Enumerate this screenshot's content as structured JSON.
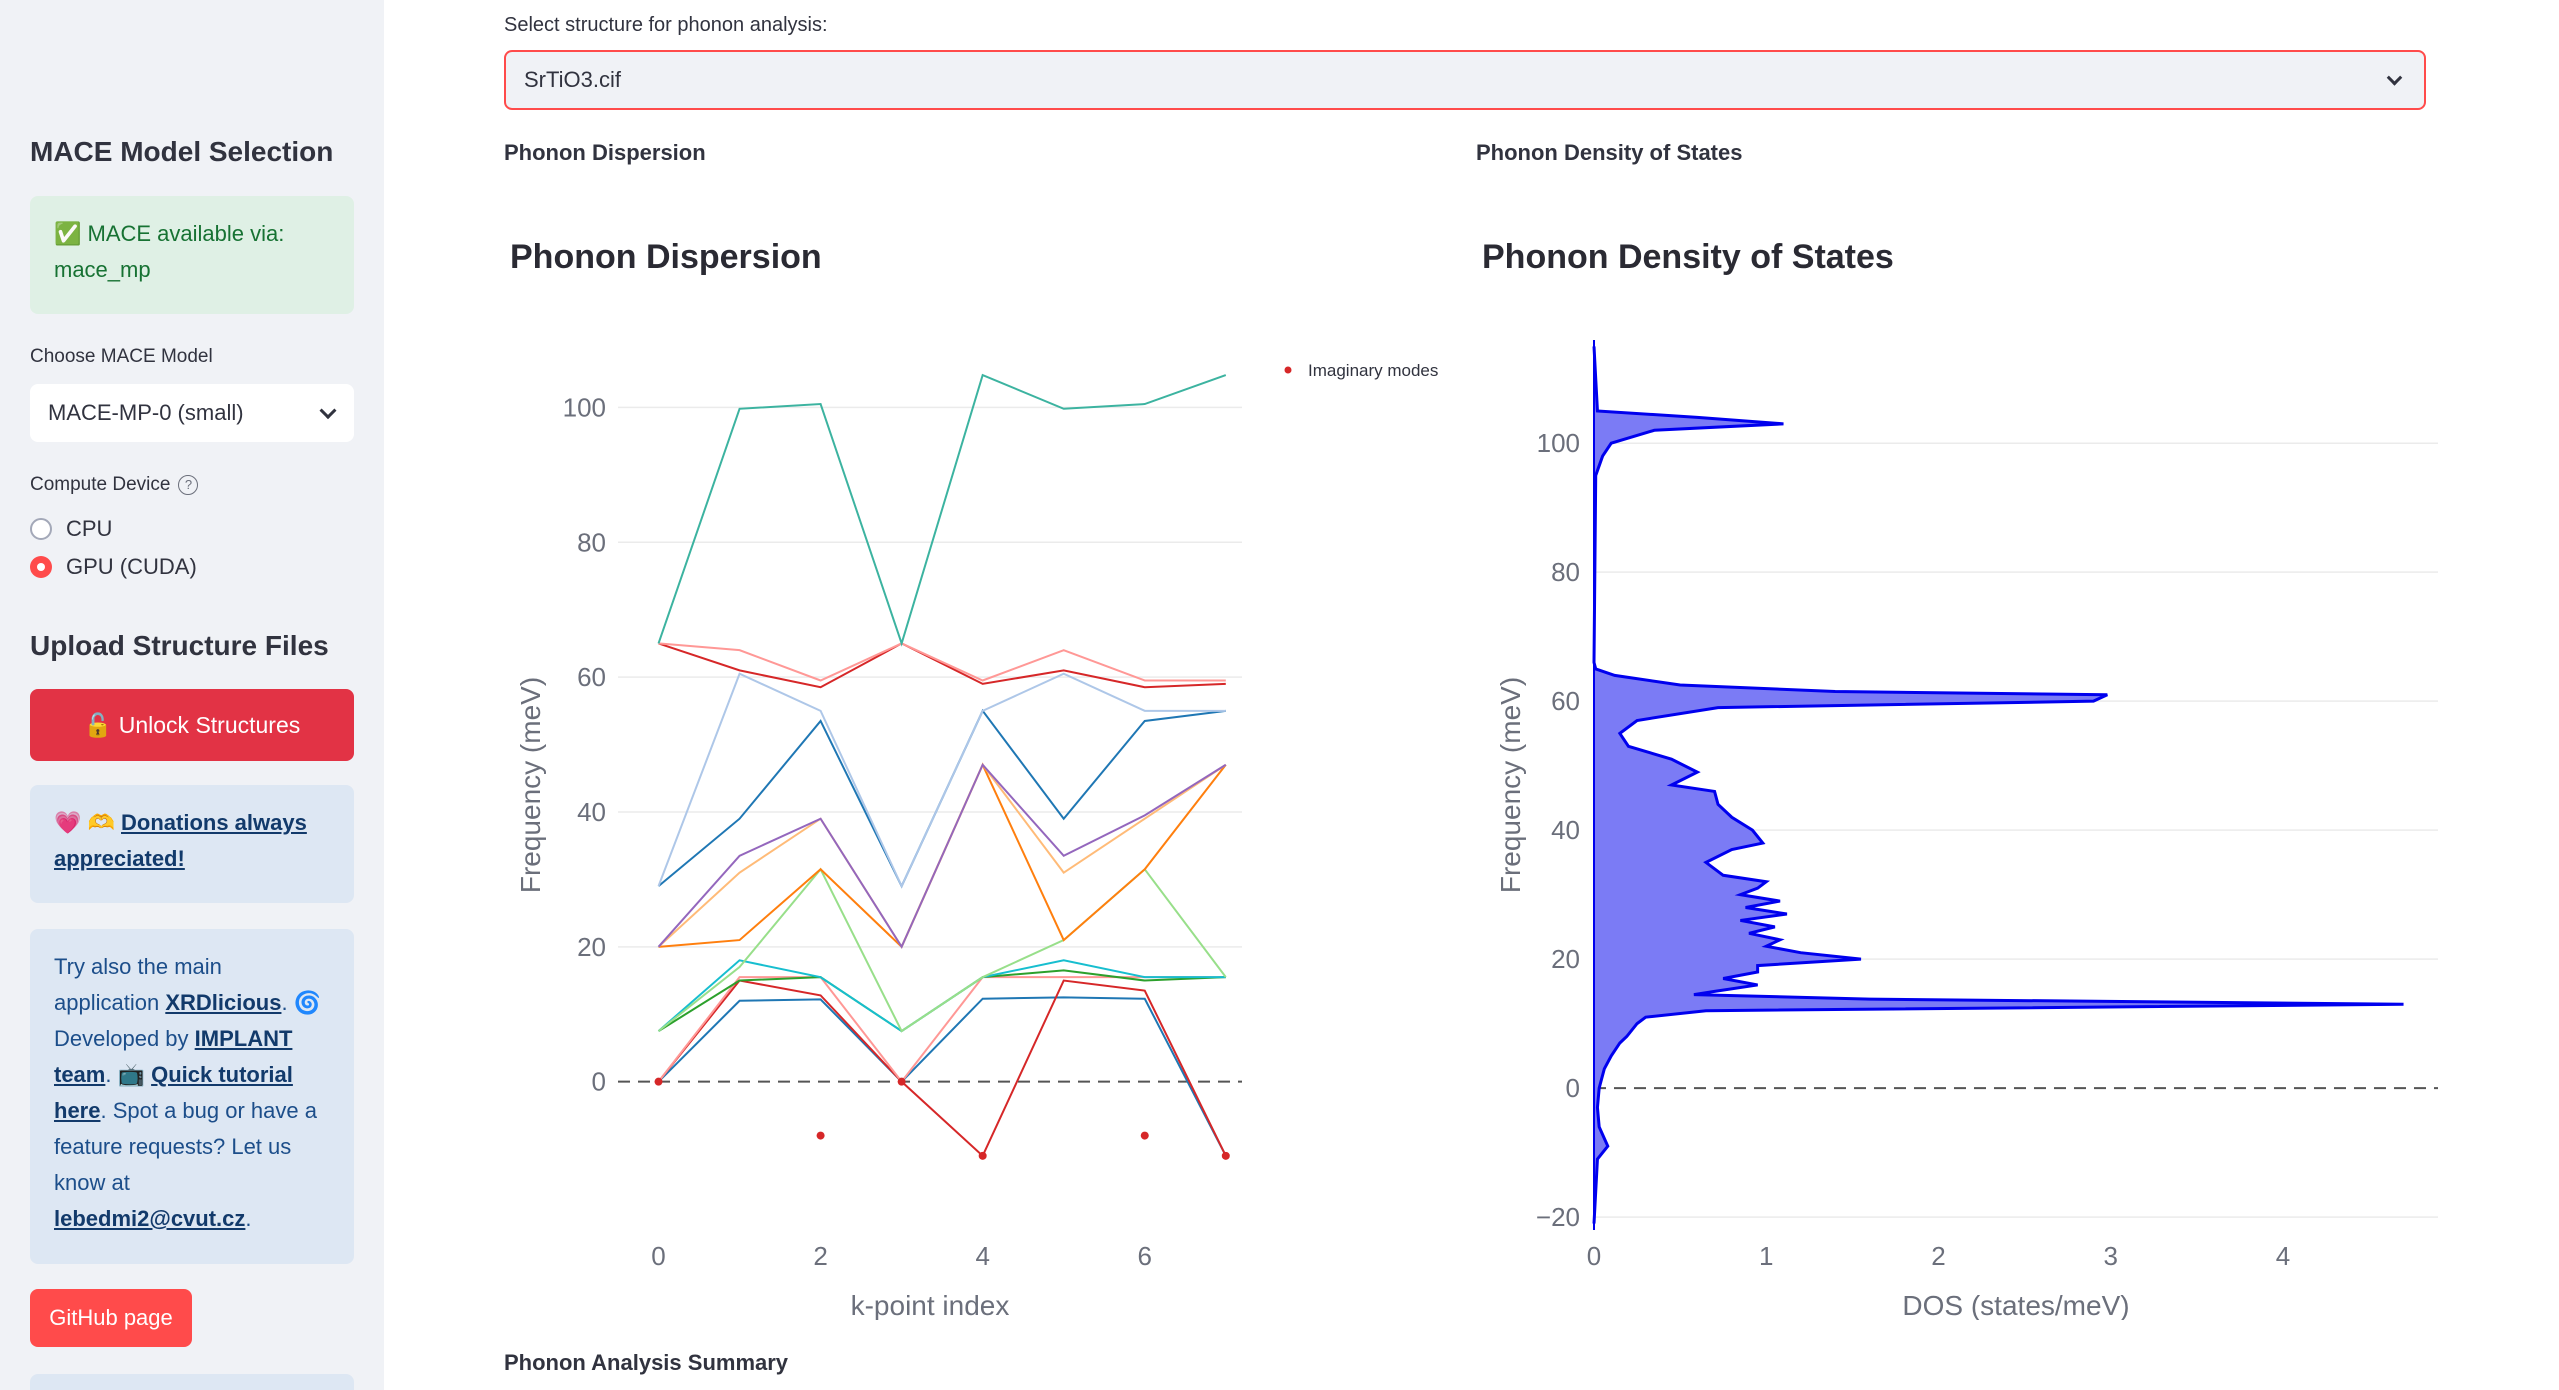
{
  "sidebar": {
    "model_heading": "MACE Model Selection",
    "mace_status": "✅ MACE available via: mace_mp",
    "choose_model_label": "Choose MACE Model",
    "model_selected": "MACE-MP-0 (small)",
    "device_label": "Compute Device",
    "device_options": [
      "CPU",
      "GPU (CUDA)"
    ],
    "device_selected": "GPU (CUDA)",
    "upload_heading": "Upload Structure Files",
    "unlock_button": "🔓 Unlock Structures",
    "donation_prefix": "💗 🫶 ",
    "donation_link": "Donations always appreciated!",
    "info": {
      "t1": "Try also the main application ",
      "link1": "XRDlicious",
      "t2": ". 🌀 Developed by ",
      "link2": "IMPLANT team",
      "t3": ". 📺 ",
      "link3": "Quick tutorial here",
      "t4": ". Spot a bug or have a feature requests? Let us know at ",
      "link4": "lebedmi2@cvut.cz",
      "t5": "."
    },
    "github_button": "GitHub page"
  },
  "main": {
    "select_label": "Select structure for phonon analysis:",
    "selected_structure": "SrTiO3.cif",
    "dispersion_section": "Phonon Dispersion",
    "dos_section": "Phonon Density of States",
    "summary_section": "Phonon Analysis Summary"
  },
  "chart_data": [
    {
      "type": "line",
      "title": "Phonon Dispersion",
      "xlabel": "k-point index",
      "ylabel": "Frequency (meV)",
      "xlim": [
        -0.5,
        7.2
      ],
      "ylim": [
        -22,
        110
      ],
      "xticks": [
        0,
        2,
        4,
        6
      ],
      "yticks": [
        0,
        20,
        40,
        60,
        80,
        100
      ],
      "legend": [
        "Imaginary modes"
      ],
      "legend_position": "top-right",
      "zero_line": "dashed",
      "x": [
        0,
        1,
        2,
        3,
        4,
        5,
        6,
        7
      ],
      "series": [
        {
          "color": "#1f77b4",
          "values": [
            0,
            12,
            12.2,
            0,
            12.3,
            12.5,
            12.3,
            -11
          ]
        },
        {
          "color": "#d62728",
          "values": [
            0,
            15,
            12.8,
            0,
            -11,
            15,
            13.5,
            -11
          ]
        },
        {
          "color": "#ff9896",
          "values": [
            0,
            15.5,
            15.5,
            0,
            15.5,
            15.5,
            15.5,
            15.5
          ]
        },
        {
          "color": "#2ca02c",
          "values": [
            7.5,
            15,
            15.5,
            7.5,
            15.5,
            16.5,
            15,
            15.5
          ]
        },
        {
          "color": "#17becf",
          "values": [
            7.5,
            18,
            15.5,
            7.5,
            15.5,
            18,
            15.5,
            15.5
          ]
        },
        {
          "color": "#98df8a",
          "values": [
            7.5,
            17,
            31.5,
            7.5,
            15.5,
            21,
            31.5,
            15.5
          ]
        },
        {
          "color": "#ff7f0e",
          "values": [
            20,
            21,
            31.5,
            20,
            47,
            21,
            31.5,
            47
          ]
        },
        {
          "color": "#ffbb78",
          "values": [
            20,
            31,
            39,
            20,
            47,
            31,
            39,
            47
          ]
        },
        {
          "color": "#9467bd",
          "values": [
            20,
            33.5,
            39,
            20,
            47,
            33.5,
            39.5,
            47
          ]
        },
        {
          "color": "#1f77b4",
          "values": [
            29,
            39,
            53.5,
            29,
            55,
            39,
            53.5,
            55
          ]
        },
        {
          "color": "#aec7e8",
          "values": [
            29,
            60.5,
            55,
            29,
            55,
            60.5,
            55,
            55
          ]
        },
        {
          "color": "#d62728",
          "values": [
            65,
            61,
            58.5,
            65,
            59,
            61,
            58.5,
            59
          ]
        },
        {
          "color": "#ff9896",
          "values": [
            65,
            64,
            59.5,
            65,
            59.5,
            64,
            59.5,
            59.5
          ]
        },
        {
          "color": "#3cb3a0",
          "values": [
            65,
            99.8,
            100.5,
            65,
            104.8,
            99.8,
            100.5,
            104.8
          ]
        }
      ],
      "imaginary_points": [
        {
          "x": 0,
          "y": 0
        },
        {
          "x": 2,
          "y": -8
        },
        {
          "x": 3,
          "y": 0
        },
        {
          "x": 4,
          "y": -11
        },
        {
          "x": 6,
          "y": -8
        },
        {
          "x": 7,
          "y": -11
        }
      ]
    },
    {
      "type": "area",
      "title": "Phonon Density of States",
      "xlabel": "DOS (states/meV)",
      "ylabel": "Frequency (meV)",
      "xlim": [
        0,
        4.9
      ],
      "ylim": [
        -22,
        116
      ],
      "xticks": [
        0,
        1,
        2,
        3,
        4
      ],
      "yticks": [
        -20,
        0,
        20,
        40,
        60,
        80,
        100
      ],
      "zero_line": "dashed",
      "fill_color": "#7b7bf5",
      "line_color": "#0000ee",
      "points": [
        [
          -21,
          0
        ],
        [
          -11,
          0.02
        ],
        [
          -9,
          0.08
        ],
        [
          -6,
          0.03
        ],
        [
          -3,
          0.02
        ],
        [
          0,
          0.03
        ],
        [
          1,
          0.04
        ],
        [
          3,
          0.06
        ],
        [
          5,
          0.1
        ],
        [
          7,
          0.15
        ],
        [
          8,
          0.19
        ],
        [
          10,
          0.25
        ],
        [
          11,
          0.3
        ],
        [
          12,
          0.65
        ],
        [
          13,
          4.7
        ],
        [
          13.8,
          1.6
        ],
        [
          14.5,
          0.58
        ],
        [
          15,
          0.7
        ],
        [
          16,
          0.95
        ],
        [
          17,
          0.75
        ],
        [
          18,
          0.95
        ],
        [
          19,
          0.95
        ],
        [
          20,
          1.55
        ],
        [
          21,
          1.2
        ],
        [
          22,
          1.0
        ],
        [
          23,
          1.08
        ],
        [
          24,
          0.9
        ],
        [
          25,
          1.05
        ],
        [
          26,
          0.85
        ],
        [
          27,
          1.12
        ],
        [
          28,
          0.88
        ],
        [
          29,
          1.08
        ],
        [
          30,
          0.85
        ],
        [
          31,
          0.95
        ],
        [
          32,
          1.0
        ],
        [
          33,
          0.75
        ],
        [
          35,
          0.65
        ],
        [
          37,
          0.8
        ],
        [
          38,
          0.98
        ],
        [
          40,
          0.92
        ],
        [
          42,
          0.8
        ],
        [
          44,
          0.72
        ],
        [
          46,
          0.7
        ],
        [
          47,
          0.45
        ],
        [
          49,
          0.6
        ],
        [
          51,
          0.45
        ],
        [
          53,
          0.2
        ],
        [
          55,
          0.15
        ],
        [
          57,
          0.25
        ],
        [
          59,
          0.72
        ],
        [
          60,
          2.9
        ],
        [
          61,
          2.98
        ],
        [
          61.5,
          1.4
        ],
        [
          62.5,
          0.5
        ],
        [
          64,
          0.12
        ],
        [
          65,
          0.01
        ],
        [
          66,
          0
        ],
        [
          95,
          0.01
        ],
        [
          98,
          0.05
        ],
        [
          100,
          0.1
        ],
        [
          102,
          0.35
        ],
        [
          103,
          1.1
        ],
        [
          104,
          0.6
        ],
        [
          105,
          0.02
        ],
        [
          115,
          0
        ]
      ]
    }
  ]
}
